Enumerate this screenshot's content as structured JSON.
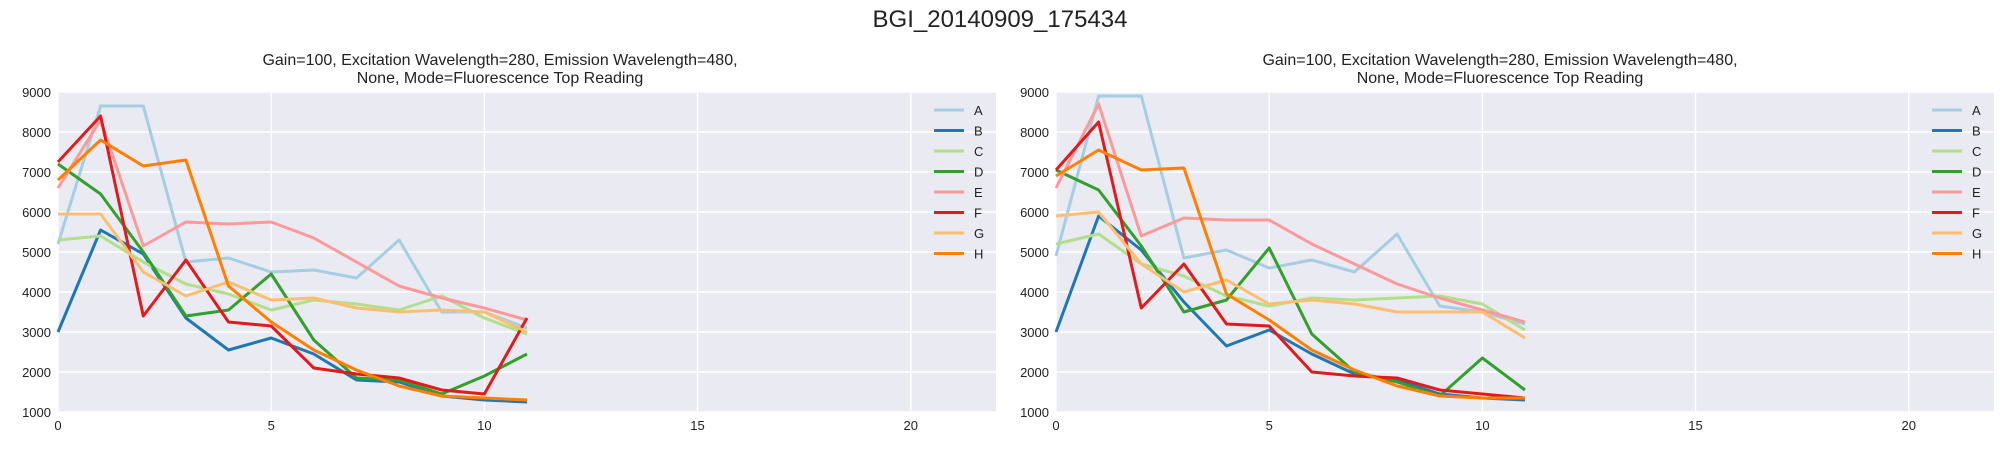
{
  "figure_title": "BGI_20140909_175434",
  "chart_data": [
    {
      "type": "line",
      "title_line1": "Gain=100, Excitation Wavelength=280, Emission Wavelength=480,",
      "title_line2": "None, Mode=Fluorescence Top Reading",
      "xlim": [
        0,
        22
      ],
      "ylim": [
        1000,
        9000
      ],
      "xticks": [
        0,
        5,
        10,
        15,
        20
      ],
      "yticks": [
        1000,
        2000,
        3000,
        4000,
        5000,
        6000,
        7000,
        8000,
        9000
      ],
      "grid": true,
      "legend_position": "top-right",
      "x": [
        0,
        1,
        2,
        3,
        4,
        5,
        6,
        7,
        8,
        9,
        10,
        11
      ],
      "series": [
        {
          "name": "A",
          "color": "#a6cee3",
          "values": [
            5200,
            8650,
            8650,
            4750,
            4850,
            4500,
            4550,
            4350,
            5300,
            3500,
            3500,
            3100
          ]
        },
        {
          "name": "B",
          "color": "#1f78b4",
          "values": [
            3000,
            5550,
            4950,
            3350,
            2550,
            2850,
            2450,
            1800,
            1750,
            1400,
            1300,
            1250
          ]
        },
        {
          "name": "C",
          "color": "#b2df8a",
          "values": [
            5300,
            5400,
            4750,
            4200,
            3950,
            3550,
            3800,
            3700,
            3550,
            3900,
            3350,
            2950
          ]
        },
        {
          "name": "D",
          "color": "#33a02c",
          "values": [
            7200,
            6450,
            5000,
            3400,
            3550,
            4450,
            2800,
            1850,
            1800,
            1450,
            1900,
            2450
          ]
        },
        {
          "name": "E",
          "color": "#fb9a99",
          "values": [
            6600,
            8300,
            5150,
            5750,
            5700,
            5750,
            5350,
            4750,
            4150,
            3850,
            3600,
            3300
          ]
        },
        {
          "name": "F",
          "color": "#e31a1c",
          "values": [
            7250,
            8400,
            3400,
            4800,
            3250,
            3150,
            2100,
            1950,
            1850,
            1550,
            1450,
            3350
          ]
        },
        {
          "name": "G",
          "color": "#fdbf6f",
          "values": [
            5950,
            5950,
            4500,
            3900,
            4250,
            3800,
            3850,
            3600,
            3500,
            3550,
            3500,
            3000
          ]
        },
        {
          "name": "H",
          "color": "#ff7f00",
          "values": [
            6800,
            7800,
            7150,
            7300,
            4150,
            3250,
            2550,
            2050,
            1650,
            1400,
            1350,
            1300
          ]
        }
      ]
    },
    {
      "type": "line",
      "title_line1": "Gain=100, Excitation Wavelength=280, Emission Wavelength=480,",
      "title_line2": "None, Mode=Fluorescence Top Reading",
      "xlim": [
        0,
        22
      ],
      "ylim": [
        1000,
        9000
      ],
      "xticks": [
        0,
        5,
        10,
        15,
        20
      ],
      "yticks": [
        1000,
        2000,
        3000,
        4000,
        5000,
        6000,
        7000,
        8000,
        9000
      ],
      "grid": true,
      "legend_position": "top-right",
      "x": [
        0,
        1,
        2,
        3,
        4,
        5,
        6,
        7,
        8,
        9,
        10,
        11
      ],
      "series": [
        {
          "name": "A",
          "color": "#a6cee3",
          "values": [
            4900,
            8900,
            8900,
            4850,
            5050,
            4600,
            4800,
            4500,
            5450,
            3650,
            3500,
            3200
          ]
        },
        {
          "name": "B",
          "color": "#1f78b4",
          "values": [
            3000,
            5900,
            5050,
            3750,
            2650,
            3050,
            2450,
            1950,
            1800,
            1450,
            1350,
            1300
          ]
        },
        {
          "name": "C",
          "color": "#b2df8a",
          "values": [
            5200,
            5450,
            4700,
            4400,
            3900,
            3650,
            3850,
            3800,
            3850,
            3900,
            3700,
            3050
          ]
        },
        {
          "name": "D",
          "color": "#33a02c",
          "values": [
            7050,
            6550,
            5150,
            3500,
            3800,
            5100,
            2950,
            2000,
            1750,
            1400,
            2350,
            1550
          ]
        },
        {
          "name": "E",
          "color": "#fb9a99",
          "values": [
            6600,
            8700,
            5400,
            5850,
            5800,
            5800,
            5200,
            4700,
            4200,
            3850,
            3550,
            3250
          ]
        },
        {
          "name": "F",
          "color": "#e31a1c",
          "values": [
            7050,
            8250,
            3600,
            4700,
            3200,
            3150,
            2000,
            1900,
            1850,
            1550,
            1450,
            1350
          ]
        },
        {
          "name": "G",
          "color": "#fdbf6f",
          "values": [
            5900,
            6000,
            4700,
            4000,
            4300,
            3700,
            3800,
            3700,
            3500,
            3500,
            3500,
            2850
          ]
        },
        {
          "name": "H",
          "color": "#ff7f00",
          "values": [
            6900,
            7550,
            7050,
            7100,
            3950,
            3300,
            2550,
            2050,
            1650,
            1400,
            1350,
            1350
          ]
        }
      ]
    }
  ]
}
